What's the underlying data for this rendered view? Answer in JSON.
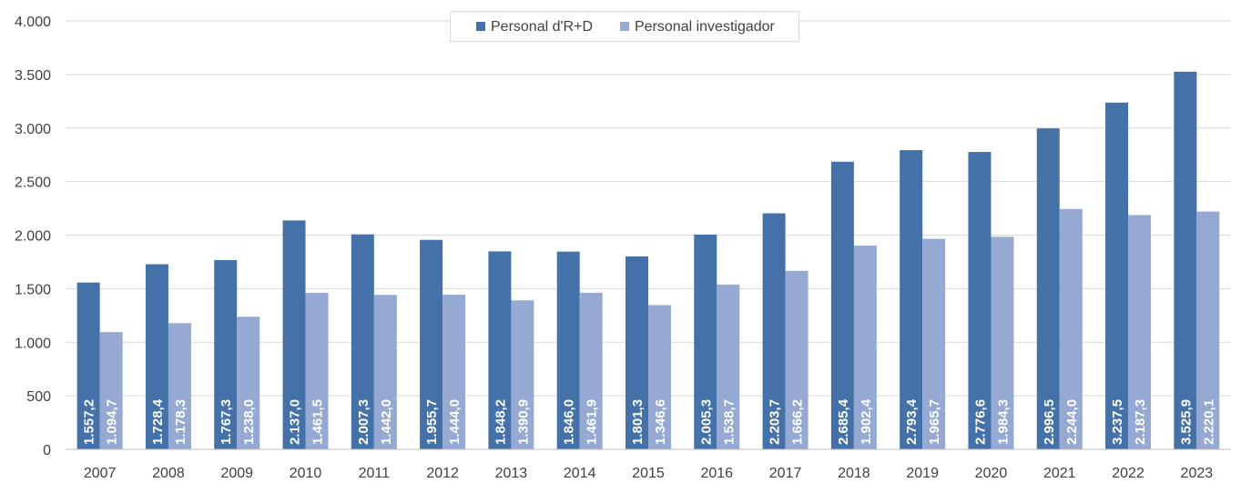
{
  "chart_data": {
    "type": "bar",
    "categories": [
      "2007",
      "2008",
      "2009",
      "2010",
      "2011",
      "2012",
      "2013",
      "2014",
      "2015",
      "2016",
      "2017",
      "2018",
      "2019",
      "2020",
      "2021",
      "2022",
      "2023"
    ],
    "series": [
      {
        "name": "Personal d'R+D",
        "color": "#4472a8",
        "values": [
          1557.2,
          1728.4,
          1767.3,
          2137.0,
          2007.3,
          1955.7,
          1848.2,
          1846.0,
          1801.3,
          2005.3,
          2203.7,
          2685.4,
          2793.4,
          2776.6,
          2996.5,
          3237.5,
          3525.9
        ],
        "labels": [
          "1.557,2",
          "1.728,4",
          "1.767,3",
          "2.137,0",
          "2.007,3",
          "1.955,7",
          "1.848,2",
          "1.846,0",
          "1.801,3",
          "2.005,3",
          "2.203,7",
          "2.685,4",
          "2.793,4",
          "2.776,6",
          "2.996,5",
          "3.237,5",
          "3.525,9"
        ]
      },
      {
        "name": "Personal investigador",
        "color": "#95a9d2",
        "values": [
          1094.7,
          1178.3,
          1238.0,
          1461.5,
          1442.0,
          1444.0,
          1390.9,
          1461.9,
          1346.6,
          1538.7,
          1666.2,
          1902.4,
          1965.7,
          1984.3,
          2244.0,
          2187.3,
          2220.1
        ],
        "labels": [
          "1.094,7",
          "1.178,3",
          "1.238,0",
          "1.461,5",
          "1.442,0",
          "1.444,0",
          "1.390,9",
          "1.461,9",
          "1.346,6",
          "1.538,7",
          "1.666,2",
          "1.902,4",
          "1.965,7",
          "1.984,3",
          "2.244,0",
          "2.187,3",
          "2.220,1"
        ]
      }
    ],
    "ylim": [
      0,
      4000
    ],
    "yticks": [
      0,
      500,
      1000,
      1500,
      2000,
      2500,
      3000,
      3500,
      4000
    ],
    "ytick_labels": [
      "0",
      "500",
      "1.000",
      "1.500",
      "2.000",
      "2.500",
      "3.000",
      "3.500",
      "4.000"
    ],
    "grid": true,
    "legend_position": "top-center"
  }
}
